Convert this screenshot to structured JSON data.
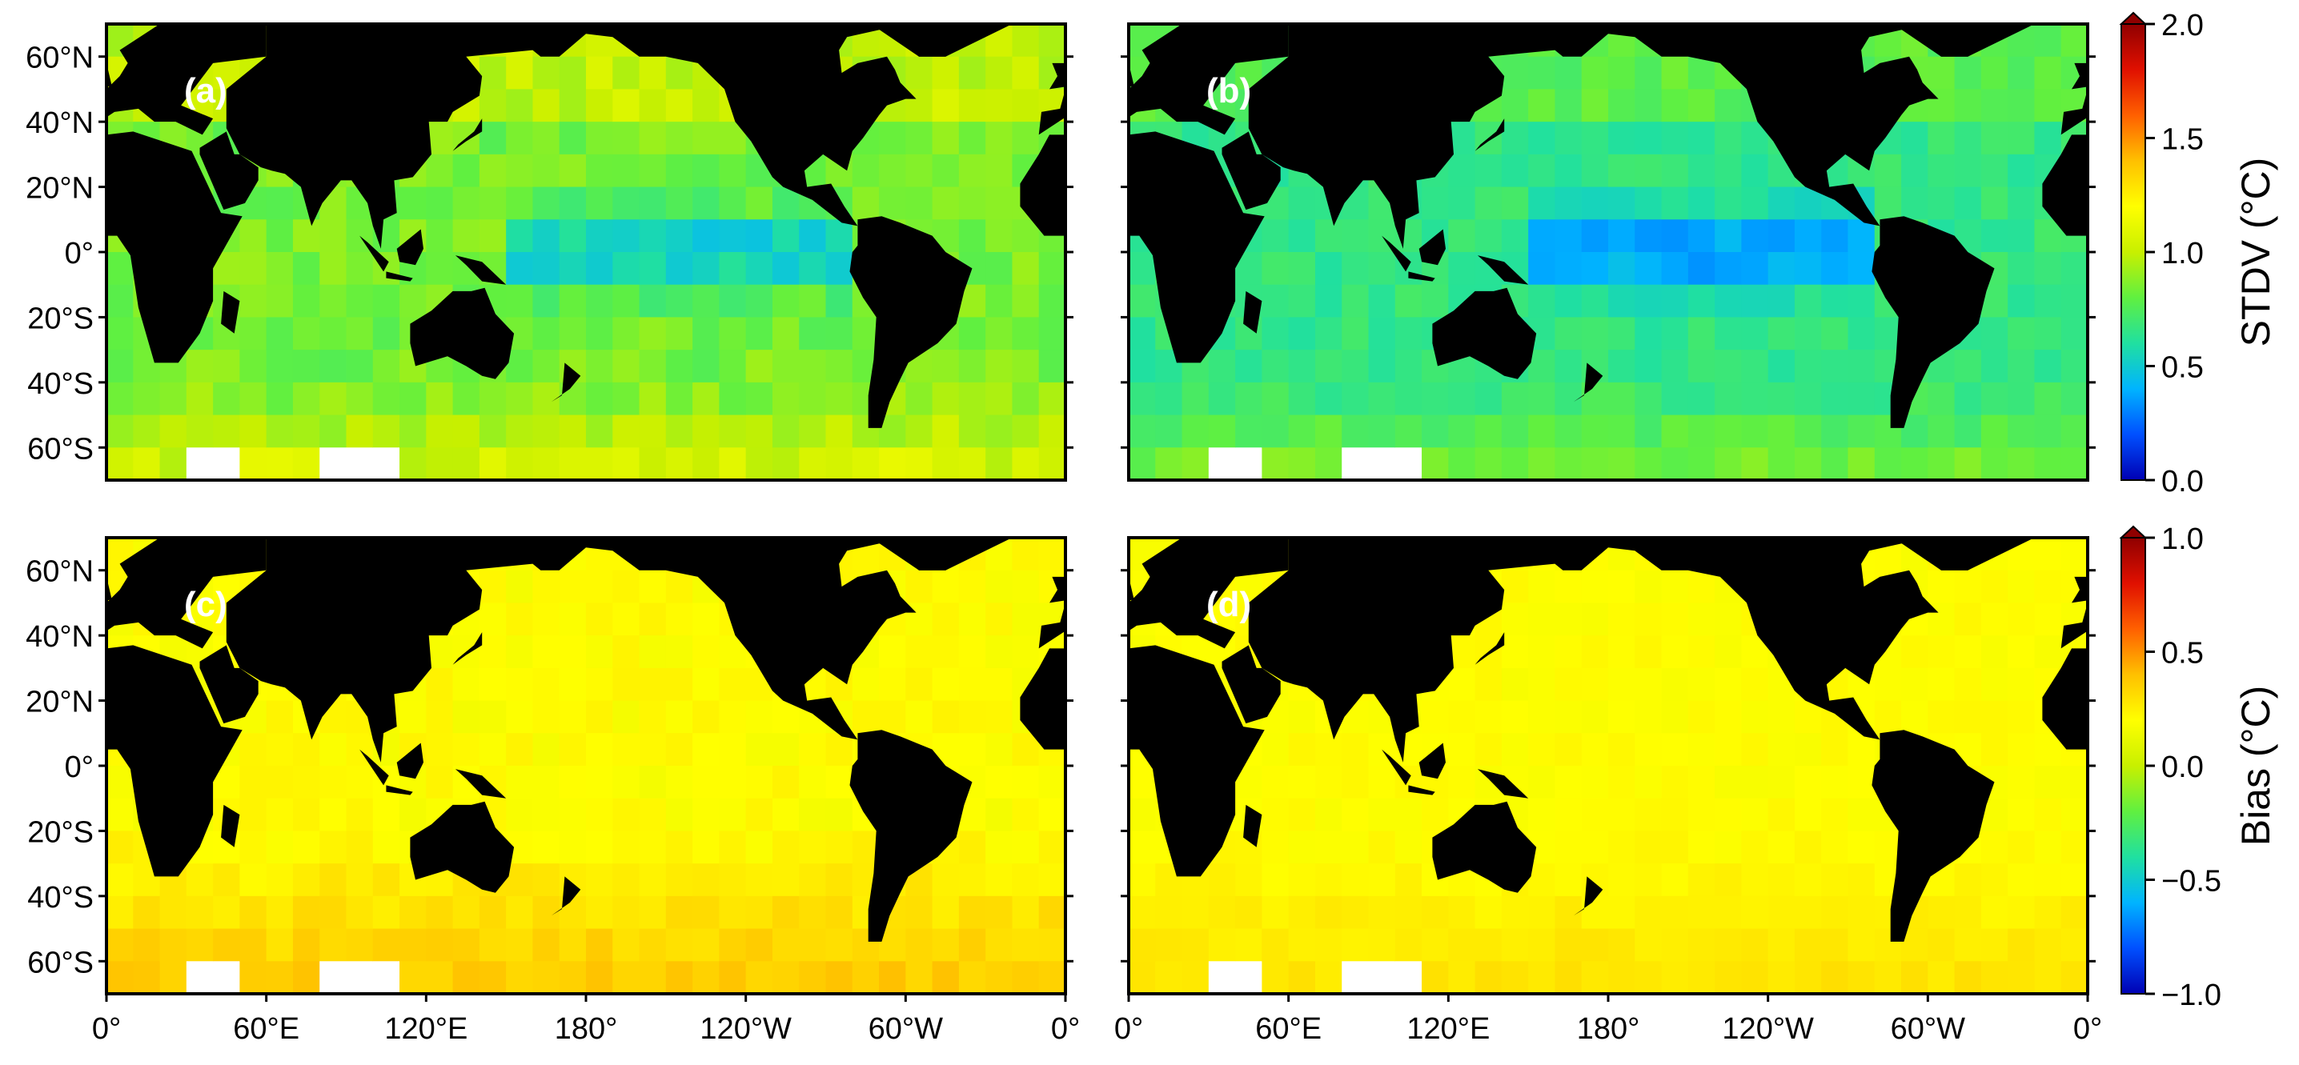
{
  "figure": {
    "panels": [
      {
        "label": "(a)",
        "quantity": "STDV"
      },
      {
        "label": "(b)",
        "quantity": "STDV"
      },
      {
        "label": "(c)",
        "quantity": "Bias"
      },
      {
        "label": "(d)",
        "quantity": "Bias"
      }
    ],
    "lat_ticks": [
      "60°N",
      "40°N",
      "20°N",
      "0°",
      "20°S",
      "40°S",
      "60°S"
    ],
    "lat_values": [
      60,
      40,
      20,
      0,
      -20,
      -40,
      -60
    ],
    "lon_ticks": [
      "0°",
      "60°E",
      "120°E",
      "180°",
      "120°W",
      "60°W",
      "0°"
    ],
    "lon_values": [
      0,
      60,
      120,
      180,
      240,
      300,
      360
    ],
    "lat_range": [
      -70,
      70
    ],
    "lon_range": [
      0,
      360
    ],
    "colorbars": [
      {
        "label": "STDV (°C)",
        "ticks": [
          "2.0",
          "1.5",
          "1.0",
          "0.5",
          "0.0"
        ],
        "range": [
          0,
          2
        ],
        "extend": "max"
      },
      {
        "label": "Bias (°C)",
        "ticks": [
          "1.0",
          "0.5",
          "0.0",
          "−0.5",
          "−1.0"
        ],
        "range": [
          -1,
          1
        ],
        "extend": "max"
      }
    ],
    "colormap": [
      "#0000b3",
      "#0050ff",
      "#00b4ff",
      "#20e0a0",
      "#60f040",
      "#c8f000",
      "#ffff00",
      "#ffc000",
      "#ff6000",
      "#e01000",
      "#900000"
    ],
    "land_color": "#000000",
    "missing_color": "#ffffff"
  }
}
